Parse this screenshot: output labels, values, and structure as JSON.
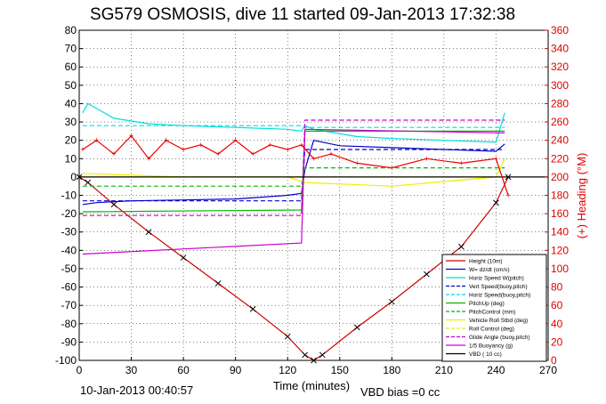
{
  "chart_data": {
    "type": "line",
    "title": "SG579 OSMOSIS, dive 11 started 09-Jan-2013 17:32:38",
    "xlabel": "Time (minutes)",
    "ylabel_right": "(+) Heading (°M)",
    "xlim": [
      0,
      270
    ],
    "ylim": [
      -100,
      80
    ],
    "ylim_right": [
      0,
      360
    ],
    "xticks": [
      "0",
      "30",
      "60",
      "90",
      "120",
      "150",
      "180",
      "210",
      "240",
      "270"
    ],
    "yticks": [
      "80",
      "70",
      "60",
      "50",
      "40",
      "30",
      "20",
      "10",
      "0",
      "-10",
      "-20",
      "-30",
      "-40",
      "-50",
      "-60",
      "-70",
      "-80",
      "-90",
      "-100"
    ],
    "yticks_right": [
      "360",
      "340",
      "320",
      "300",
      "280",
      "260",
      "240",
      "220",
      "200",
      "180",
      "160",
      "140",
      "120",
      "100",
      "80",
      "60",
      "40",
      "20",
      "0"
    ],
    "grid": true,
    "legend_position": "bottom-right",
    "series": [
      {
        "name": "Height (10m)",
        "color": "#cc0000",
        "style": "solid",
        "x": [
          0,
          5,
          20,
          40,
          60,
          80,
          100,
          120,
          130,
          135,
          140,
          160,
          180,
          200,
          220,
          240,
          247
        ],
        "y": [
          0,
          -3,
          -15,
          -30,
          -44,
          -58,
          -72,
          -87,
          -97,
          -100,
          -97,
          -82,
          -68,
          -53,
          -38,
          -14,
          0
        ]
      },
      {
        "name": "W= dz/dt (cm/s)",
        "color": "#0000cc",
        "style": "solid",
        "x": [
          2,
          10,
          30,
          60,
          90,
          120,
          128,
          130,
          135,
          150,
          180,
          210,
          240,
          245
        ],
        "y": [
          -15,
          -14,
          -13,
          -12.5,
          -12,
          -10,
          -9,
          4,
          20,
          17,
          16,
          15,
          14,
          18
        ]
      },
      {
        "name": "Horiz Speed W(pitch)",
        "color": "#00dddd",
        "style": "solid",
        "x": [
          2,
          5,
          20,
          40,
          60,
          90,
          120,
          128,
          130,
          135,
          160,
          180,
          210,
          240,
          245
        ],
        "y": [
          35,
          40,
          32,
          29,
          28,
          27,
          26,
          25,
          28,
          26,
          22,
          21,
          20,
          19,
          35
        ]
      },
      {
        "name": "Vert Speed(buoy,pitch)",
        "color": "#0000cc",
        "style": "dashed",
        "x": [
          2,
          128,
          130,
          245
        ],
        "y": [
          -13,
          -13,
          15,
          15
        ]
      },
      {
        "name": "Horiz Speed(buoy,pitch)",
        "color": "#00dddd",
        "style": "dashed",
        "x": [
          2,
          128,
          130,
          245
        ],
        "y": [
          28,
          28,
          27,
          27
        ]
      },
      {
        "name": "PitchUp (deg)",
        "color": "#00bb00",
        "style": "solid",
        "x": [
          2,
          128,
          130,
          245
        ],
        "y": [
          -19,
          -18,
          25,
          25
        ]
      },
      {
        "name": "PitchControl (mm)",
        "color": "#00bb00",
        "style": "dashed",
        "x": [
          2,
          128,
          130,
          245
        ],
        "y": [
          -5,
          -5,
          5,
          5
        ]
      },
      {
        "name": "Vehicle Roll Stbd (deg)",
        "color": "#eeee00",
        "style": "solid",
        "x": [
          2,
          60,
          120,
          130,
          180,
          240,
          245
        ],
        "y": [
          2,
          0,
          0,
          -3,
          -5,
          0,
          10
        ]
      },
      {
        "name": "Roll Control (deg)",
        "color": "#eeee00",
        "style": "dashed",
        "x": [
          2,
          128,
          130,
          245
        ],
        "y": [
          0,
          0,
          0,
          0
        ]
      },
      {
        "name": "Glide Angle (buoy,pitch)",
        "color": "#cc00cc",
        "style": "dashed",
        "x": [
          2,
          128,
          130,
          245
        ],
        "y": [
          -21,
          -21,
          31,
          31
        ]
      },
      {
        "name": "1/5 Buoyancy (g)",
        "color": "#cc00cc",
        "style": "solid",
        "x": [
          2,
          128,
          130,
          245
        ],
        "y": [
          -42,
          -36,
          26,
          24
        ]
      },
      {
        "name": "VBD ( 10 cc)",
        "color": "#000000",
        "style": "solid",
        "x": [
          0,
          270
        ],
        "y": [
          0,
          0
        ]
      }
    ],
    "heading_series": {
      "name": "(+) Heading (°M)",
      "color": "#ee0000",
      "x": [
        2,
        10,
        20,
        30,
        40,
        50,
        60,
        70,
        80,
        90,
        100,
        110,
        120,
        128,
        135,
        145,
        160,
        180,
        200,
        220,
        240,
        247
      ],
      "y": [
        230,
        240,
        225,
        245,
        220,
        240,
        230,
        235,
        225,
        240,
        225,
        235,
        230,
        235,
        220,
        225,
        215,
        210,
        220,
        215,
        220,
        180
      ]
    }
  },
  "footer": {
    "end_time": "10-Jan-2013 00:40:57",
    "vbd_bias": "VBD bias =0 cc"
  }
}
